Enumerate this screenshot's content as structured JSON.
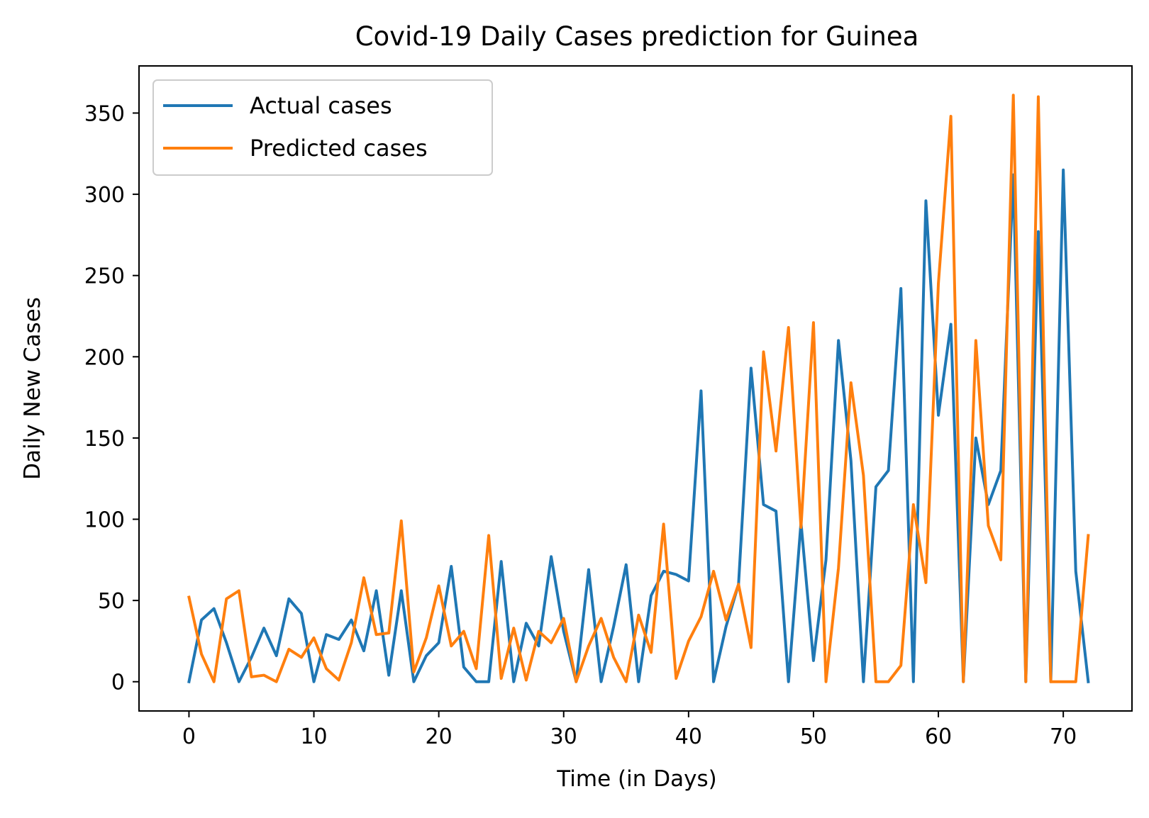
{
  "chart_data": {
    "type": "line",
    "title": "Covid-19 Daily Cases prediction for Guinea",
    "xlabel": "Time (in Days)",
    "ylabel": "Daily New Cases",
    "xlim": [
      -4,
      75.5
    ],
    "ylim": [
      -18,
      379
    ],
    "xticks": [
      0,
      10,
      20,
      30,
      40,
      50,
      60,
      70
    ],
    "yticks": [
      0,
      50,
      100,
      150,
      200,
      250,
      300,
      350
    ],
    "grid": false,
    "legend_position": "upper-left",
    "series": [
      {
        "name": "Actual cases",
        "color": "#1f77b4",
        "values": [
          0,
          38,
          45,
          24,
          0,
          15,
          33,
          16,
          51,
          42,
          0,
          29,
          26,
          38,
          19,
          56,
          4,
          56,
          0,
          16,
          24,
          71,
          9,
          0,
          0,
          74,
          0,
          36,
          22,
          77,
          31,
          0,
          69,
          0,
          34,
          72,
          0,
          53,
          68,
          66,
          62,
          179,
          0,
          34,
          60,
          193,
          109,
          105,
          0,
          98,
          13,
          75,
          210,
          136,
          0,
          120,
          130,
          242,
          0,
          296,
          164,
          220,
          0,
          150,
          109,
          130,
          312,
          0,
          277,
          0,
          315,
          68,
          0
        ]
      },
      {
        "name": "Predicted cases",
        "color": "#ff7f0e",
        "values": [
          52,
          17,
          0,
          51,
          56,
          3,
          4,
          0,
          20,
          15,
          27,
          8,
          1,
          24,
          64,
          29,
          30,
          99,
          6,
          27,
          59,
          22,
          31,
          8,
          90,
          2,
          33,
          1,
          31,
          24,
          39,
          0,
          22,
          39,
          15,
          0,
          41,
          18,
          97,
          2,
          25,
          40,
          68,
          38,
          60,
          21,
          203,
          142,
          218,
          95,
          221,
          0,
          70,
          184,
          127,
          0,
          0,
          10,
          109,
          61,
          245,
          348,
          0,
          210,
          96,
          75,
          361,
          0,
          360,
          0,
          0,
          0,
          90
        ]
      }
    ]
  }
}
